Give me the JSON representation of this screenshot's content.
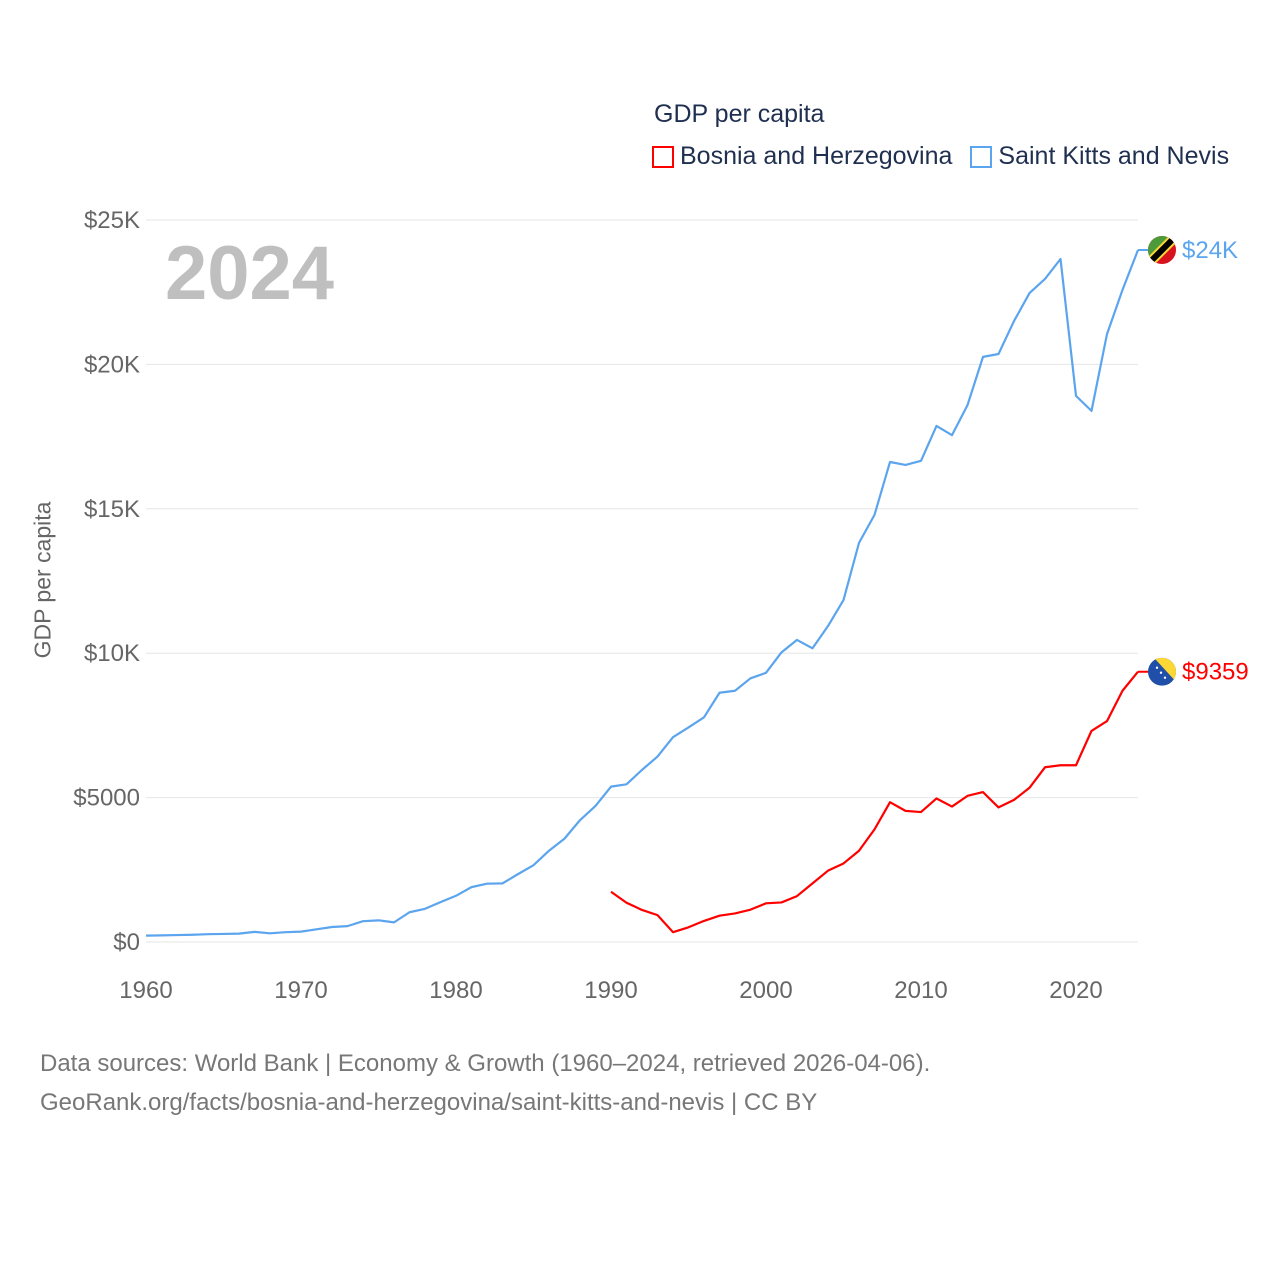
{
  "chart_data": {
    "type": "line",
    "title": "GDP per capita",
    "ylabel": "GDP per capita",
    "xlabel": "",
    "year_label": "2024",
    "xlim": [
      1960,
      2024
    ],
    "ylim": [
      0,
      25000
    ],
    "x_ticks": [
      1960,
      1970,
      1980,
      1990,
      2000,
      2010,
      2020
    ],
    "y_ticks": [
      {
        "value": 0,
        "label": "$0"
      },
      {
        "value": 5000,
        "label": "$5000"
      },
      {
        "value": 10000,
        "label": "$10K"
      },
      {
        "value": 15000,
        "label": "$15K"
      },
      {
        "value": 20000,
        "label": "$20K"
      },
      {
        "value": 25000,
        "label": "$25K"
      }
    ],
    "grid": true,
    "legend_position": "top-right",
    "series": [
      {
        "name": "Bosnia and Herzegovina",
        "color": "#ff0000",
        "end_label": "$9359",
        "flag": "bosnia-flag",
        "x_start": 1990,
        "values": [
          1740,
          1360,
          1110,
          930,
          340,
          510,
          730,
          910,
          990,
          1120,
          1340,
          1370,
          1590,
          2030,
          2470,
          2720,
          3160,
          3900,
          4840,
          4540,
          4500,
          4970,
          4690,
          5060,
          5190,
          4660,
          4920,
          5340,
          6050,
          6120,
          6120,
          7310,
          7650,
          8700,
          9359
        ]
      },
      {
        "name": "Saint Kitts and Nevis",
        "color": "#5ba4ee",
        "end_label": "$24K",
        "flag": "saint-kitts-flag",
        "x_start": 1960,
        "values": [
          220,
          230,
          240,
          250,
          270,
          280,
          290,
          350,
          300,
          340,
          360,
          440,
          520,
          550,
          720,
          750,
          680,
          1030,
          1150,
          1380,
          1600,
          1900,
          2020,
          2030,
          2350,
          2660,
          3160,
          3580,
          4220,
          4710,
          5380,
          5460,
          5960,
          6420,
          7090,
          7430,
          7780,
          8630,
          8700,
          9130,
          9320,
          10030,
          10460,
          10170,
          10940,
          11840,
          13820,
          14790,
          16620,
          16520,
          16660,
          17870,
          17550,
          18590,
          20260,
          20360,
          21500,
          22470,
          22960,
          23650,
          18910,
          18390,
          21050,
          22580,
          23960
        ]
      }
    ]
  },
  "footer": {
    "line1": "Data sources: World Bank | Economy & Growth (1960–2024, retrieved 2026-04-06).",
    "line2": "GeoRank.org/facts/bosnia-and-herzegovina/saint-kitts-and-nevis | CC BY"
  }
}
